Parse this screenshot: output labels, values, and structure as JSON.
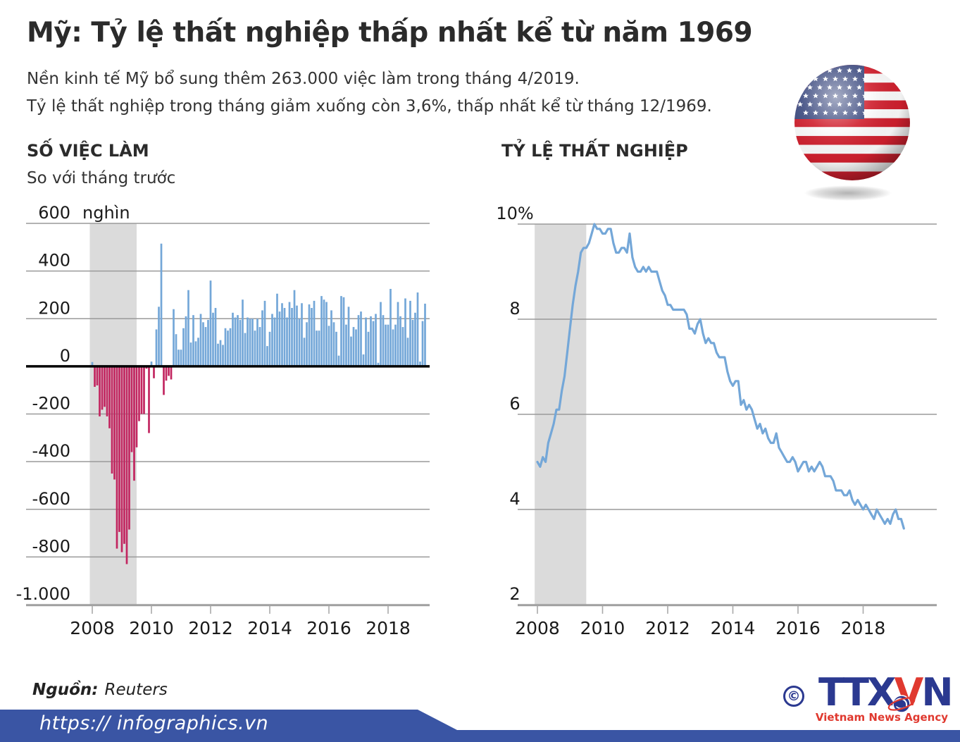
{
  "header": {
    "title": "Mỹ: Tỷ lệ thất nghiệp thấp nhất kể từ năm 1969",
    "subtitle_line1": "Nền kinh tế Mỹ bổ sung thêm 263.000 việc làm trong tháng 4/2019.",
    "subtitle_line2": "Tỷ lệ thất nghiệp trong tháng giảm xuống còn 3,6%, thấp nhất kể từ tháng 12/1969."
  },
  "chart_data": [
    {
      "type": "bar",
      "title": "SỐ VIỆC LÀM",
      "subtitle": "So với tháng trước",
      "unit_label": "nghìn",
      "frequency": "monthly",
      "x_start": "2008-01",
      "x_end": "2019-04",
      "x_tick_labels": [
        "2008",
        "2010",
        "2012",
        "2014",
        "2016",
        "2018"
      ],
      "y_ticks": [
        600,
        400,
        200,
        0,
        -200,
        -400,
        -600,
        -800,
        -1000
      ],
      "y_tick_labels": [
        "600",
        "400",
        "200",
        "0",
        "-200",
        "-400",
        "-600",
        "-800",
        "-1.000"
      ],
      "ylim": [
        -1000,
        600
      ],
      "recession_band": [
        "2007-12",
        "2009-06"
      ],
      "values": [
        18,
        -86,
        -80,
        -210,
        -182,
        -170,
        -210,
        -260,
        -450,
        -475,
        -765,
        -695,
        -780,
        -745,
        -830,
        -685,
        -360,
        -480,
        -340,
        -230,
        -200,
        -200,
        -10,
        -280,
        20,
        -50,
        155,
        250,
        515,
        -120,
        -60,
        -40,
        -55,
        240,
        135,
        70,
        70,
        160,
        210,
        320,
        100,
        215,
        105,
        120,
        220,
        185,
        165,
        195,
        360,
        225,
        245,
        95,
        110,
        90,
        160,
        150,
        160,
        225,
        205,
        215,
        195,
        280,
        140,
        205,
        200,
        200,
        150,
        200,
        165,
        235,
        275,
        85,
        145,
        220,
        205,
        305,
        230,
        265,
        245,
        205,
        270,
        245,
        320,
        255,
        200,
        265,
        120,
        185,
        260,
        245,
        275,
        150,
        150,
        295,
        280,
        270,
        170,
        235,
        185,
        145,
        45,
        295,
        290,
        175,
        250,
        125,
        165,
        155,
        215,
        230,
        50,
        205,
        145,
        210,
        190,
        220,
        15,
        270,
        215,
        175,
        175,
        325,
        155,
        175,
        270,
        210,
        165,
        285,
        120,
        275,
        195,
        225,
        310,
        20,
        190,
        263
      ]
    },
    {
      "type": "line",
      "title": "TỶ LỆ THẤT NGHIỆP",
      "frequency": "monthly",
      "x_start": "2008-01",
      "x_end": "2019-04",
      "x_tick_labels": [
        "2008",
        "2010",
        "2012",
        "2014",
        "2016",
        "2018"
      ],
      "y_ticks": [
        10,
        8,
        6,
        4,
        2
      ],
      "y_tick_labels": [
        "10%",
        "8",
        "6",
        "4",
        "2"
      ],
      "ylim": [
        2,
        10
      ],
      "recession_band": [
        "2007-12",
        "2009-06"
      ],
      "values": [
        5.0,
        4.9,
        5.1,
        5.0,
        5.4,
        5.6,
        5.8,
        6.1,
        6.1,
        6.5,
        6.8,
        7.3,
        7.8,
        8.3,
        8.7,
        9.0,
        9.4,
        9.5,
        9.5,
        9.6,
        9.8,
        10.0,
        9.9,
        9.9,
        9.8,
        9.8,
        9.9,
        9.9,
        9.6,
        9.4,
        9.4,
        9.5,
        9.5,
        9.4,
        9.8,
        9.3,
        9.1,
        9.0,
        9.0,
        9.1,
        9.0,
        9.1,
        9.0,
        9.0,
        9.0,
        8.8,
        8.6,
        8.5,
        8.3,
        8.3,
        8.2,
        8.2,
        8.2,
        8.2,
        8.2,
        8.1,
        7.8,
        7.8,
        7.7,
        7.9,
        8.0,
        7.7,
        7.5,
        7.6,
        7.5,
        7.5,
        7.3,
        7.2,
        7.2,
        7.2,
        6.9,
        6.7,
        6.6,
        6.7,
        6.7,
        6.2,
        6.3,
        6.1,
        6.2,
        6.1,
        5.9,
        5.7,
        5.8,
        5.6,
        5.7,
        5.5,
        5.4,
        5.4,
        5.6,
        5.3,
        5.2,
        5.1,
        5.0,
        5.0,
        5.1,
        5.0,
        4.8,
        4.9,
        5.0,
        5.0,
        4.8,
        4.9,
        4.8,
        4.9,
        5.0,
        4.9,
        4.7,
        4.7,
        4.7,
        4.6,
        4.4,
        4.4,
        4.4,
        4.3,
        4.3,
        4.4,
        4.2,
        4.1,
        4.2,
        4.1,
        4.0,
        4.1,
        4.0,
        3.9,
        3.8,
        4.0,
        3.9,
        3.8,
        3.7,
        3.8,
        3.7,
        3.9,
        4.0,
        3.8,
        3.8,
        3.6
      ]
    }
  ],
  "footer": {
    "source_label": "Nguồn:",
    "source_value": "Reuters",
    "url_text": "https:// infographics.vn",
    "copyright_symbol": "©",
    "agency_logo": {
      "part1": "TTX",
      "part2": "V",
      "part3": "N",
      "tagline": "Vietnam News Agency"
    }
  },
  "colors": {
    "bar_positive": "#74a7d8",
    "bar_negative": "#c22660",
    "line": "#74a7d8",
    "recession_band": "#dbdbdb",
    "gridline": "#9a9a9a",
    "zero_line": "#000000",
    "footer_banner": "#3a55a4",
    "logo_blue": "#2b3990",
    "logo_red": "#e0392f",
    "flag_red": "#d0202e",
    "flag_blue": "#3d4b80"
  }
}
